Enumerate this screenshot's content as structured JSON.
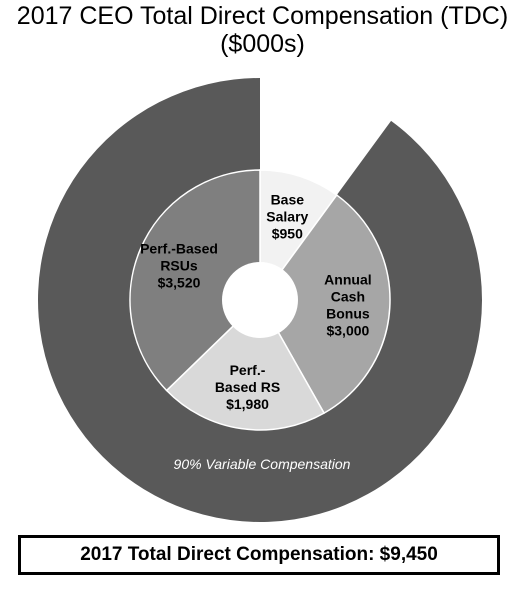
{
  "title": {
    "line1": "2017 CEO Total Direct Compensation (TDC)",
    "line2": "($000s)"
  },
  "chart_data": {
    "type": "pie",
    "title": "2017 CEO Total Direct Compensation (TDC) ($000s)",
    "inner_ring": [
      {
        "label_lines": [
          "Base",
          "Salary"
        ],
        "value_label": "$950",
        "value": 950,
        "color": "#f2f2f2"
      },
      {
        "label_lines": [
          "Annual",
          "Cash",
          "Bonus"
        ],
        "value_label": "$3,000",
        "value": 3000,
        "color": "#a6a6a6"
      },
      {
        "label_lines": [
          "Perf.-",
          "Based RS"
        ],
        "value_label": "$1,980",
        "value": 1980,
        "color": "#d9d9d9"
      },
      {
        "label_lines": [
          "Perf.-Based",
          "RSUs"
        ],
        "value_label": "$3,520",
        "value": 3520,
        "color": "#7f7f7f"
      }
    ],
    "outer_ring": {
      "label": "90% Variable Compensation",
      "percent": 90,
      "color": "#595959",
      "gap_color": "#ffffff"
    },
    "total": 9450
  },
  "total_box": {
    "label": "2017 Total Direct Compensation: $9,450"
  }
}
